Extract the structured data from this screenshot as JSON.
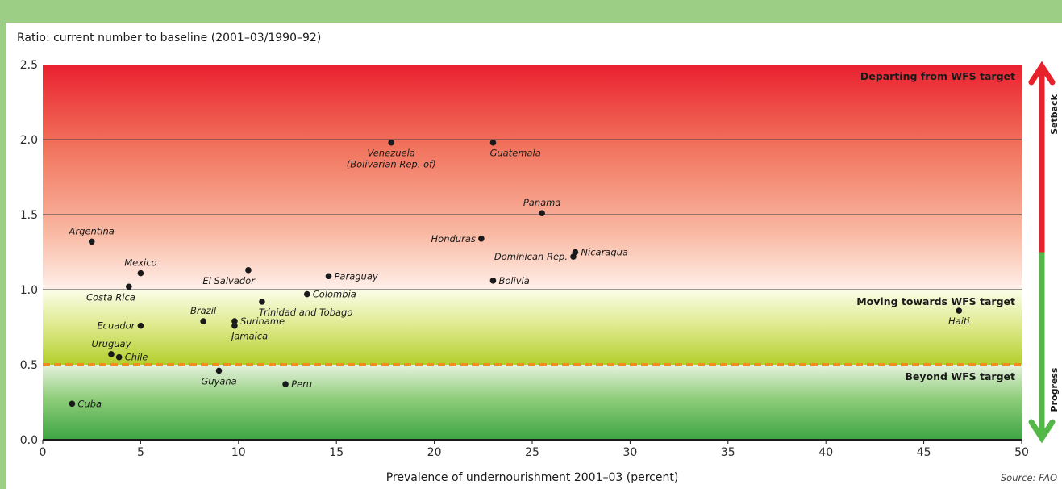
{
  "colors": {
    "frame": "#9ccf85",
    "setback": "#e8212b",
    "progress": "#54b848",
    "threshold": "#f28c1e",
    "point": "#1a1a1a"
  },
  "chart_data": {
    "type": "scatter",
    "ylabel": "Ratio: current number to baseline (2001–03/1990–92)",
    "xlabel": "Prevalence of undernourishment 2001–03 (percent)",
    "source": "Source: FAO",
    "xlim": [
      0,
      50
    ],
    "ylim": [
      0,
      2.5
    ],
    "x_ticks": [
      "0",
      "5",
      "10",
      "15",
      "20",
      "25",
      "30",
      "35",
      "40",
      "45",
      "50"
    ],
    "y_ticks": [
      "0.0",
      "0.5",
      "1.0",
      "1.5",
      "2.0",
      "2.5"
    ],
    "grid": "horizontal lines at 1.0, 1.5, 2.0",
    "threshold_line": 0.5,
    "zones": [
      {
        "label": "Departing from WFS target",
        "from": 1.0,
        "to": 2.5
      },
      {
        "label": "Moving towards WFS target",
        "from": 0.5,
        "to": 1.0
      },
      {
        "label": "Beyond WFS target",
        "from": 0.0,
        "to": 0.5
      }
    ],
    "arrows": {
      "up": "Setback",
      "down": "Progress"
    },
    "points": [
      {
        "label": "Venezuela",
        "label2": "(Bolivarian Rep. of)",
        "x": 17.8,
        "y": 1.98,
        "pos": "below"
      },
      {
        "label": "Guatemala",
        "x": 23.0,
        "y": 1.98,
        "pos": "below-right"
      },
      {
        "label": "Panama",
        "x": 25.5,
        "y": 1.51,
        "pos": "above"
      },
      {
        "label": "Argentina",
        "x": 2.5,
        "y": 1.32,
        "pos": "above"
      },
      {
        "label": "Honduras",
        "x": 22.4,
        "y": 1.34,
        "pos": "left"
      },
      {
        "label": "Nicaragua",
        "x": 27.2,
        "y": 1.25,
        "pos": "right"
      },
      {
        "label": "Dominican Rep.",
        "x": 27.1,
        "y": 1.22,
        "pos": "left"
      },
      {
        "label": "El Salvador",
        "x": 10.5,
        "y": 1.13,
        "pos": "below-left"
      },
      {
        "label": "Paraguay",
        "x": 14.6,
        "y": 1.09,
        "pos": "right"
      },
      {
        "label": "Mexico",
        "x": 5.0,
        "y": 1.11,
        "pos": "above"
      },
      {
        "label": "Bolivia",
        "x": 23.0,
        "y": 1.06,
        "pos": "right"
      },
      {
        "label": "Costa Rica",
        "x": 4.4,
        "y": 1.02,
        "pos": "below-left"
      },
      {
        "label": "Colombia",
        "x": 13.5,
        "y": 0.97,
        "pos": "right"
      },
      {
        "label": "Trinidad and Tobago",
        "x": 11.2,
        "y": 0.92,
        "pos": "below-right"
      },
      {
        "label": "Haiti",
        "x": 46.8,
        "y": 0.86,
        "pos": "below"
      },
      {
        "label": "Brazil",
        "x": 8.2,
        "y": 0.79,
        "pos": "above"
      },
      {
        "label": "Suriname",
        "x": 9.8,
        "y": 0.79,
        "pos": "right"
      },
      {
        "label": "Jamaica",
        "x": 9.8,
        "y": 0.76,
        "pos": "below-right"
      },
      {
        "label": "Ecuador",
        "x": 5.0,
        "y": 0.76,
        "pos": "left"
      },
      {
        "label": "Uruguay",
        "x": 3.5,
        "y": 0.57,
        "pos": "above"
      },
      {
        "label": "Chile",
        "x": 3.9,
        "y": 0.55,
        "pos": "right"
      },
      {
        "label": "Guyana",
        "x": 9.0,
        "y": 0.46,
        "pos": "below"
      },
      {
        "label": "Peru",
        "x": 12.4,
        "y": 0.37,
        "pos": "right"
      },
      {
        "label": "Cuba",
        "x": 1.5,
        "y": 0.24,
        "pos": "right"
      }
    ]
  }
}
